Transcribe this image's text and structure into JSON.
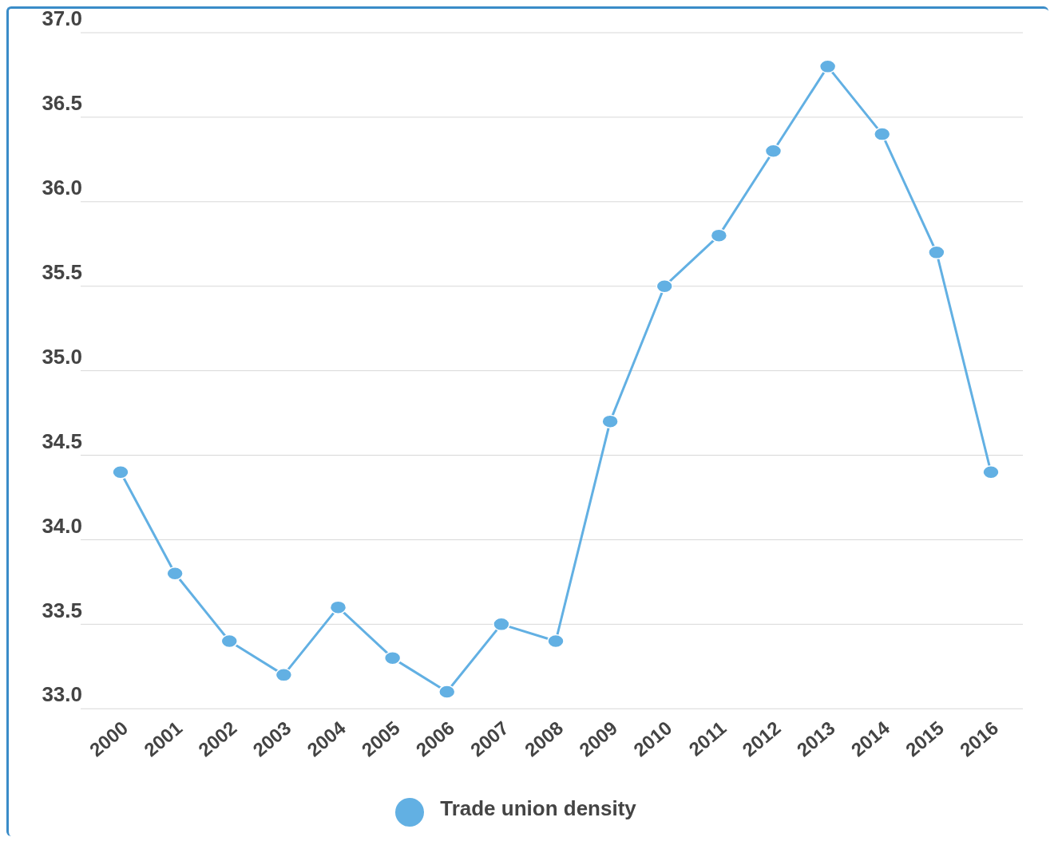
{
  "chart_data": {
    "type": "line",
    "categories": [
      "2000",
      "2001",
      "2002",
      "2003",
      "2004",
      "2005",
      "2006",
      "2007",
      "2008",
      "2009",
      "2010",
      "2011",
      "2012",
      "2013",
      "2014",
      "2015",
      "2016"
    ],
    "series": [
      {
        "name": "Trade union density",
        "color": "#62b0e3",
        "values": [
          34.4,
          33.8,
          33.4,
          33.2,
          33.6,
          33.3,
          33.1,
          33.5,
          33.4,
          34.7,
          35.5,
          35.8,
          36.3,
          36.8,
          36.4,
          35.7,
          34.4
        ]
      }
    ],
    "ylim": [
      33,
      37
    ],
    "yticks": [
      {
        "value": 33,
        "label": "33.0"
      },
      {
        "value": 33.5,
        "label": "33.5"
      },
      {
        "value": 34,
        "label": "34.0"
      },
      {
        "value": 34.5,
        "label": "34.5"
      },
      {
        "value": 35,
        "label": "35.0"
      },
      {
        "value": 35.5,
        "label": "35.5"
      },
      {
        "value": 36,
        "label": "36.0"
      },
      {
        "value": 36.5,
        "label": "36.5"
      },
      {
        "value": 37,
        "label": "37.0"
      }
    ],
    "grid": "y",
    "legend": "bottom",
    "marker": "circle",
    "line_style": "solid"
  }
}
